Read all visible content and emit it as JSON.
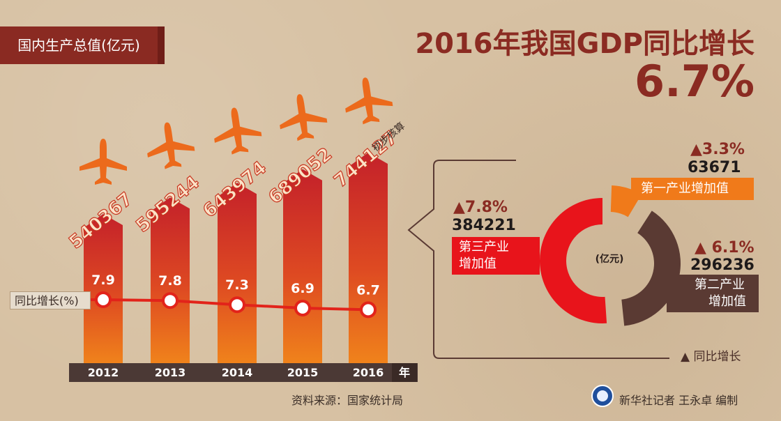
{
  "header": {
    "gdp_tag": "国内生产总值(亿元)",
    "title": "2016年我国GDP同比增长",
    "growth_pct": "6.7%"
  },
  "yoy_tag": "同比增长(%)",
  "year_unit": "年",
  "preliminary_note": "初步核算",
  "source": "资料来源：国家统计局",
  "credit": "新华社记者 王永卓 编制",
  "colors": {
    "title": "#8b2b22",
    "bar_top": "#c4212a",
    "bar_bottom": "#f0831b",
    "line": "#e2231a",
    "airplane": "#ec6a1c",
    "primary": "#f07a1a",
    "secondary": "#5a3a33",
    "tertiary": "#e8141b"
  },
  "chart_data": [
    {
      "type": "bar",
      "categories": [
        "2012",
        "2013",
        "2014",
        "2015",
        "2016"
      ],
      "series": [
        {
          "name": "国内生产总值(亿元)",
          "values": [
            540367,
            595244,
            643974,
            689052,
            744127
          ]
        }
      ],
      "value_labels": [
        "540367",
        "595244",
        "643974",
        "689052",
        "744127"
      ]
    },
    {
      "type": "line",
      "categories": [
        "2012",
        "2013",
        "2014",
        "2015",
        "2016"
      ],
      "series": [
        {
          "name": "同比增长(%)",
          "values": [
            7.9,
            7.8,
            7.3,
            6.9,
            6.7
          ]
        }
      ],
      "value_labels": [
        "7.9",
        "7.8",
        "7.3",
        "6.9",
        "6.7"
      ]
    },
    {
      "type": "pie",
      "center_label": "(亿元)",
      "slices": [
        {
          "name": "第一产业增加值",
          "value": 63671,
          "yoy": "▲3.3%",
          "value_label": "63671"
        },
        {
          "name": "第二产业增加值",
          "value": 296236,
          "yoy": "▲ 6.1%",
          "value_label": "296236"
        },
        {
          "name": "第三产业增加值",
          "value": 384221,
          "yoy": "▲7.8%",
          "value_label": "384221"
        }
      ],
      "legend_text": "▲ 同比增长"
    }
  ],
  "pie_labels": {
    "primary_lines": [
      "第一产业增加值"
    ],
    "secondary_lines": [
      "第二产业",
      "增加值"
    ],
    "tertiary_lines": [
      "第三产业",
      "增加值"
    ]
  }
}
